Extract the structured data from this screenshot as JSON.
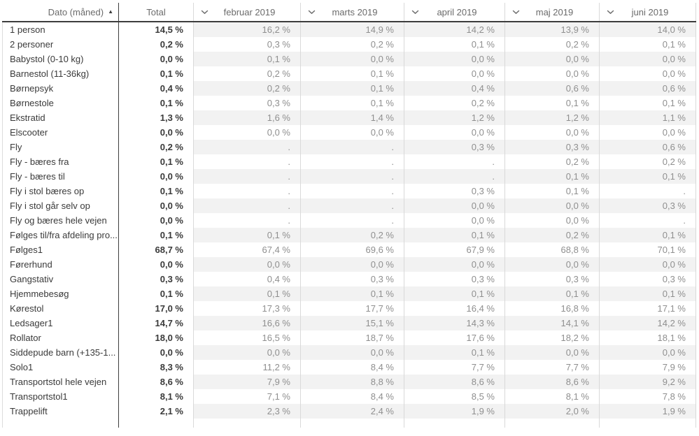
{
  "header": {
    "dimension_label": "Dato (måned)",
    "sort_icon": "▲",
    "sort_direction": "ascending",
    "total_label": "Total",
    "chevron_icon": "chevron-down",
    "months": [
      "februar 2019",
      "marts 2019",
      "april 2019",
      "maj 2019",
      "juni 2019"
    ]
  },
  "missing_marker": ".",
  "colors": {
    "row_band": "#f2f2f2",
    "grid_line": "#d9d9d9",
    "strong_line": "#3d3d3d",
    "header_text": "#6b6b6b",
    "label_text": "#3a3a3a",
    "value_text": "#8f8f8f"
  },
  "rows": [
    {
      "label": "1 person",
      "total": "14,5 %",
      "values": [
        "16,2 %",
        "14,9 %",
        "14,2 %",
        "13,9 %",
        "14,0 %"
      ]
    },
    {
      "label": "2 personer",
      "total": "0,2 %",
      "values": [
        "0,3 %",
        "0,2 %",
        "0,1 %",
        "0,2 %",
        "0,1 %"
      ]
    },
    {
      "label": "Babystol (0-10 kg)",
      "total": "0,0 %",
      "values": [
        "0,1 %",
        "0,0 %",
        "0,0 %",
        "0,0 %",
        "0,0 %"
      ]
    },
    {
      "label": "Barnestol (11-36kg)",
      "total": "0,1 %",
      "values": [
        "0,2 %",
        "0,1 %",
        "0,0 %",
        "0,0 %",
        "0,0 %"
      ]
    },
    {
      "label": "Børnepsyk",
      "total": "0,4 %",
      "values": [
        "0,2 %",
        "0,1 %",
        "0,4 %",
        "0,6 %",
        "0,6 %"
      ]
    },
    {
      "label": "Børnestole",
      "total": "0,1 %",
      "values": [
        "0,3 %",
        "0,1 %",
        "0,2 %",
        "0,1 %",
        "0,1 %"
      ]
    },
    {
      "label": "Ekstratid",
      "total": "1,3 %",
      "values": [
        "1,6 %",
        "1,4 %",
        "1,2 %",
        "1,2 %",
        "1,1 %"
      ]
    },
    {
      "label": "Elscooter",
      "total": "0,0 %",
      "values": [
        "0,0 %",
        "0,0 %",
        "0,0 %",
        "0,0 %",
        "0,0 %"
      ]
    },
    {
      "label": "Fly",
      "total": "0,2 %",
      "values": [
        ".",
        ".",
        "0,3 %",
        "0,3 %",
        "0,6 %"
      ]
    },
    {
      "label": "Fly - bæres fra",
      "total": "0,1 %",
      "values": [
        ".",
        ".",
        ".",
        "0,2 %",
        "0,2 %"
      ]
    },
    {
      "label": "Fly - bæres til",
      "total": "0,0 %",
      "values": [
        ".",
        ".",
        ".",
        "0,1 %",
        "0,1 %"
      ]
    },
    {
      "label": "Fly i stol bæres op",
      "total": "0,1 %",
      "values": [
        ".",
        ".",
        "0,3 %",
        "0,1 %",
        "."
      ]
    },
    {
      "label": "Fly i stol går selv op",
      "total": "0,0 %",
      "values": [
        ".",
        ".",
        "0,0 %",
        "0,0 %",
        "0,3 %"
      ]
    },
    {
      "label": "Fly og bæres hele vejen",
      "total": "0,0 %",
      "values": [
        ".",
        ".",
        "0,0 %",
        "0,0 %",
        "."
      ]
    },
    {
      "label": "Følges til/fra afdeling pro...",
      "total": "0,1 %",
      "values": [
        "0,1 %",
        "0,2 %",
        "0,1 %",
        "0,2 %",
        "0,1 %"
      ]
    },
    {
      "label": "Følges1",
      "total": "68,7 %",
      "values": [
        "67,4 %",
        "69,6 %",
        "67,9 %",
        "68,8 %",
        "70,1 %"
      ]
    },
    {
      "label": "Førerhund",
      "total": "0,0 %",
      "values": [
        "0,0 %",
        "0,0 %",
        "0,0 %",
        "0,0 %",
        "0,0 %"
      ]
    },
    {
      "label": "Gangstativ",
      "total": "0,3 %",
      "values": [
        "0,4 %",
        "0,3 %",
        "0,3 %",
        "0,3 %",
        "0,3 %"
      ]
    },
    {
      "label": "Hjemmebesøg",
      "total": "0,1 %",
      "values": [
        "0,1 %",
        "0,1 %",
        "0,1 %",
        "0,1 %",
        "0,1 %"
      ]
    },
    {
      "label": "Kørestol",
      "total": "17,0 %",
      "values": [
        "17,3 %",
        "17,7 %",
        "16,4 %",
        "16,8 %",
        "17,1 %"
      ]
    },
    {
      "label": "Ledsager1",
      "total": "14,7 %",
      "values": [
        "16,6 %",
        "15,1 %",
        "14,3 %",
        "14,1 %",
        "14,2 %"
      ]
    },
    {
      "label": "Rollator",
      "total": "18,0 %",
      "values": [
        "16,5 %",
        "18,7 %",
        "17,6 %",
        "18,2 %",
        "18,1 %"
      ]
    },
    {
      "label": "Siddepude barn (+135-1...",
      "total": "0,0 %",
      "values": [
        "0,0 %",
        "0,0 %",
        "0,1 %",
        "0,0 %",
        "0,0 %"
      ]
    },
    {
      "label": "Solo1",
      "total": "8,3 %",
      "values": [
        "11,2 %",
        "8,4 %",
        "7,7 %",
        "7,7 %",
        "7,9 %"
      ]
    },
    {
      "label": "Transportstol hele vejen",
      "total": "8,6 %",
      "values": [
        "7,9 %",
        "8,8 %",
        "8,6 %",
        "8,6 %",
        "9,2 %"
      ]
    },
    {
      "label": "Transportstol1",
      "total": "8,1 %",
      "values": [
        "7,1 %",
        "8,4 %",
        "8,5 %",
        "8,1 %",
        "7,8 %"
      ]
    },
    {
      "label": "Trappelift",
      "total": "2,1 %",
      "values": [
        "2,3 %",
        "2,4 %",
        "1,9 %",
        "2,0 %",
        "1,9 %"
      ]
    }
  ]
}
